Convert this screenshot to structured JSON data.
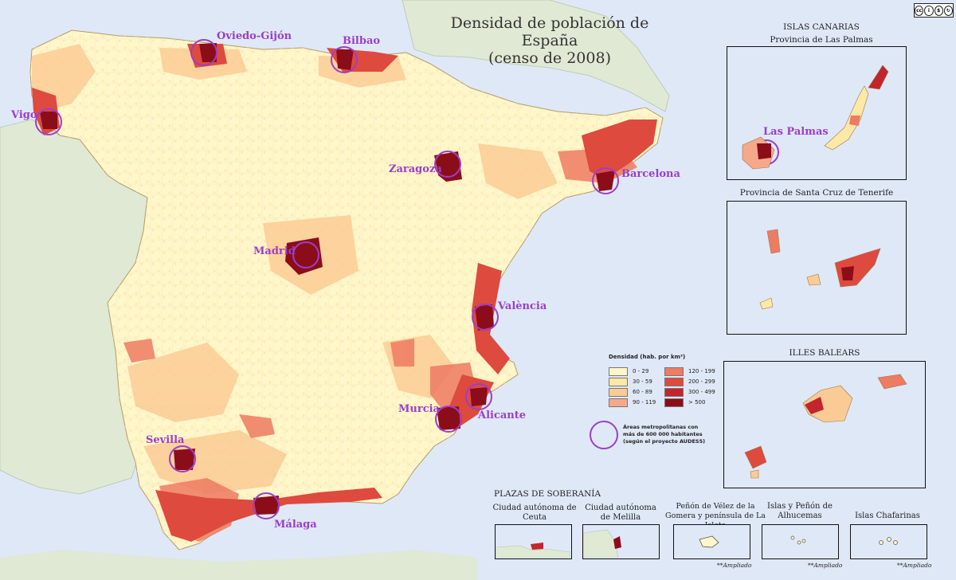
{
  "map": {
    "title_line1": "Densidad de población de España",
    "title_line2": "(censo de 2008)",
    "license": "cc by nc sa",
    "colors": {
      "sea": "#dfe8f7",
      "land_outside": "#dfe9d4",
      "d0_29": "#fff6c9",
      "d30_59": "#fde8a5",
      "d60_89": "#fbcb95",
      "d90_119": "#f6a98a",
      "d120_199": "#ee7b62",
      "d200_299": "#de4a3e",
      "d300_499": "#c1262d",
      "d500": "#8c0d1a",
      "circle": "#9b3fc9"
    }
  },
  "cities": {
    "oviedo": "Oviedo-Gijón",
    "bilbao": "Bilbao",
    "vigo": "Vigo",
    "zaragoza": "Zaragoza",
    "barcelona": "Barcelona",
    "madrid": "Madrid",
    "valencia": "València",
    "alicante": "Alicante",
    "murcia": "Murcia",
    "sevilla": "Sevilla",
    "malaga": "Málaga",
    "las_palmas": "Las Palmas"
  },
  "insets": {
    "canarias_title": "ISLAS CANARIAS",
    "las_palmas_title": "Provincia de Las Palmas",
    "tenerife_title": "Provincia de Santa Cruz de Tenerife",
    "baleares_title": "ILLES BALEARS"
  },
  "legend": {
    "title": "Densidad (hab. por km²)",
    "items": [
      {
        "label": "0 - 29",
        "color": "#fff6c9"
      },
      {
        "label": "30 - 59",
        "color": "#fde8a5"
      },
      {
        "label": "60 - 89",
        "color": "#fbcb95"
      },
      {
        "label": "90 - 119",
        "color": "#f6a98a"
      },
      {
        "label": "120 - 199",
        "color": "#ee7b62"
      },
      {
        "label": "200 - 299",
        "color": "#de4a3e"
      },
      {
        "label": "300 - 499",
        "color": "#c1262d"
      },
      {
        "label": "> 500",
        "color": "#8c0d1a"
      }
    ],
    "metro_note_line1": "Áreas metropolitanas con",
    "metro_note_line2": "más de 600 000 habitantes",
    "metro_note_line3": "(según el proyecto AUDES5)"
  },
  "plazas": {
    "title": "PLAZAS DE SOBERANÍA",
    "ceuta": "Ciudad autónoma de Ceuta",
    "melilla": "Ciudad autónoma de Melilla",
    "velez": "Peñón de Vélez de la Gomera y península de La Isleta",
    "alhucemas": "Islas y Peñón de Alhucemas",
    "chafarinas": "Islas Chafarinas",
    "ampliado": "**Ampliado",
    "asterisk": "**"
  }
}
